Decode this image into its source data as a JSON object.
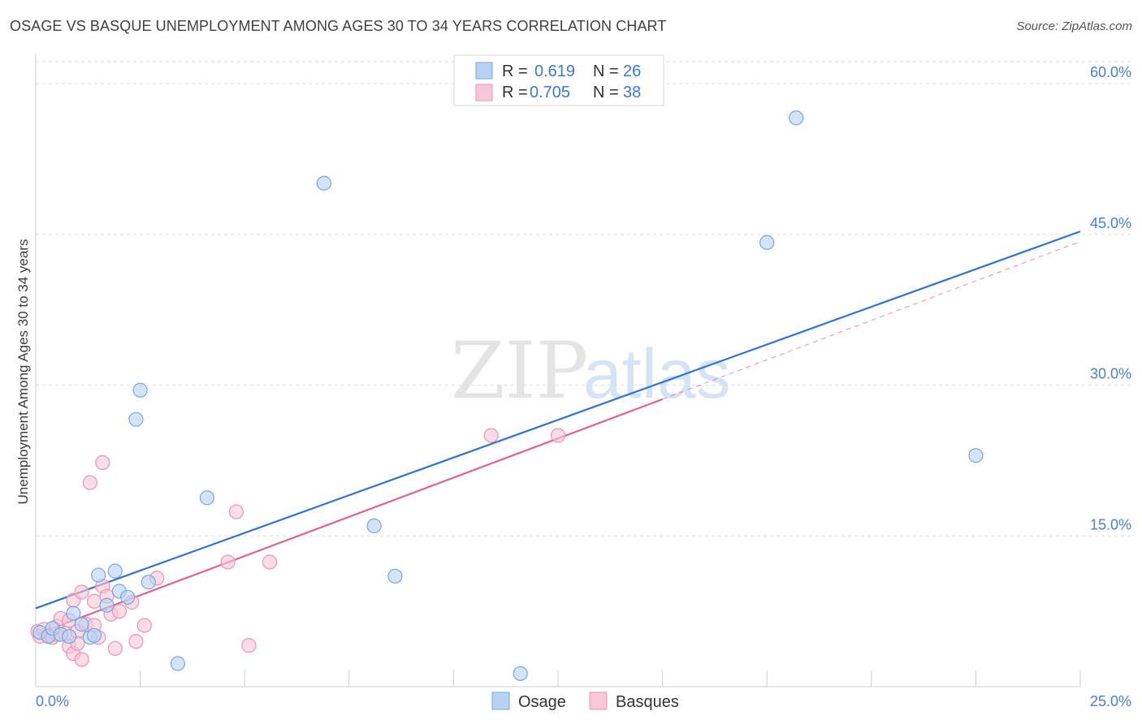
{
  "header": {
    "title": "OSAGE VS BASQUE UNEMPLOYMENT AMONG AGES 30 TO 34 YEARS CORRELATION CHART",
    "source": "Source: ZipAtlas.com"
  },
  "watermark": {
    "zip": "ZIP",
    "atlas": "atlas"
  },
  "legend": {
    "rows": [
      {
        "r_label": "R =",
        "r_value": "0.619",
        "n_label": "N =",
        "n_value": "26"
      },
      {
        "r_label": "R =",
        "r_value": "0.705",
        "n_label": "N =",
        "n_value": "38"
      }
    ]
  },
  "bottom_legend": {
    "osage": "Osage",
    "basques": "Basques"
  },
  "colors": {
    "osage_fill": "#b7d2f3",
    "osage_stroke": "#7aa6e0",
    "osage_line": "#2f72d0",
    "basques_fill": "#f8c6d6",
    "basques_stroke": "#ec93b2",
    "basques_line": "#e0628f",
    "grid": "#dddddd",
    "axis_label": "#4a7fd0"
  },
  "chart_data": {
    "type": "scatter",
    "title": "OSAGE VS BASQUE UNEMPLOYMENT AMONG AGES 30 TO 34 YEARS CORRELATION CHART",
    "xlabel": "",
    "ylabel": "Unemployment Among Ages 30 to 34 years",
    "xlim": [
      0,
      25
    ],
    "ylim": [
      0,
      63
    ],
    "x_tick_labels": [
      "0.0%",
      "25.0%"
    ],
    "y_ticks": [
      15,
      30,
      45,
      60
    ],
    "y_tick_labels": [
      "15.0%",
      "30.0%",
      "45.0%",
      "60.0%"
    ],
    "grid": true,
    "legend_position": "top-center",
    "series": [
      {
        "name": "Osage",
        "r": 0.619,
        "n": 26,
        "points": [
          [
            0.1,
            5.4
          ],
          [
            0.3,
            5.0
          ],
          [
            0.4,
            5.8
          ],
          [
            0.6,
            5.2
          ],
          [
            0.8,
            5.0
          ],
          [
            0.9,
            7.3
          ],
          [
            1.1,
            6.2
          ],
          [
            1.3,
            4.9
          ],
          [
            1.4,
            5.1
          ],
          [
            1.5,
            11.1
          ],
          [
            1.7,
            8.1
          ],
          [
            1.9,
            11.5
          ],
          [
            2.0,
            9.5
          ],
          [
            2.2,
            8.9
          ],
          [
            2.4,
            26.6
          ],
          [
            2.5,
            29.5
          ],
          [
            2.7,
            10.4
          ],
          [
            3.4,
            2.3
          ],
          [
            4.1,
            18.8
          ],
          [
            6.9,
            50.1
          ],
          [
            8.1,
            16.0
          ],
          [
            8.6,
            11.0
          ],
          [
            11.6,
            1.3
          ],
          [
            17.5,
            44.2
          ],
          [
            18.2,
            56.6
          ],
          [
            22.5,
            23.0
          ]
        ],
        "trend": {
          "x": [
            0,
            25
          ],
          "y": [
            7.8,
            45.3
          ]
        }
      },
      {
        "name": "Basques",
        "r": 0.705,
        "n": 38,
        "points": [
          [
            0.05,
            5.5
          ],
          [
            0.1,
            5.0
          ],
          [
            0.2,
            5.7
          ],
          [
            0.3,
            5.1
          ],
          [
            0.4,
            4.9
          ],
          [
            0.5,
            5.2
          ],
          [
            0.5,
            6.0
          ],
          [
            0.6,
            6.8
          ],
          [
            0.7,
            5.3
          ],
          [
            0.8,
            6.6
          ],
          [
            0.8,
            4.0
          ],
          [
            0.9,
            8.6
          ],
          [
            0.9,
            3.3
          ],
          [
            1.0,
            5.5
          ],
          [
            1.0,
            4.3
          ],
          [
            1.1,
            2.7
          ],
          [
            1.1,
            9.4
          ],
          [
            1.2,
            6.2
          ],
          [
            1.3,
            20.3
          ],
          [
            1.4,
            6.1
          ],
          [
            1.4,
            8.5
          ],
          [
            1.5,
            4.9
          ],
          [
            1.6,
            22.3
          ],
          [
            1.6,
            10.0
          ],
          [
            1.7,
            9.0
          ],
          [
            1.8,
            7.2
          ],
          [
            1.9,
            3.8
          ],
          [
            2.0,
            7.5
          ],
          [
            2.3,
            8.4
          ],
          [
            2.4,
            4.5
          ],
          [
            2.6,
            6.1
          ],
          [
            2.9,
            10.8
          ],
          [
            4.6,
            12.4
          ],
          [
            4.8,
            17.4
          ],
          [
            5.1,
            4.1
          ],
          [
            5.6,
            12.4
          ],
          [
            10.9,
            25.0
          ],
          [
            12.5,
            25.0
          ]
        ],
        "trend": {
          "x": [
            0,
            15
          ],
          "y": [
            5.2,
            28.6
          ]
        },
        "trend_extended": {
          "x": [
            15,
            25
          ],
          "y": [
            28.6,
            44.3
          ]
        }
      }
    ]
  }
}
